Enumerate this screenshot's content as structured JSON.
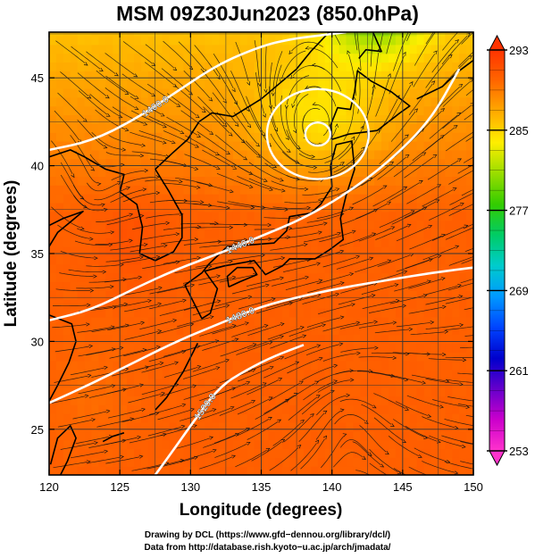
{
  "chart_data": {
    "type": "heatmap",
    "title": "MSM 09Z30Jun2023 (850.0hPa)",
    "xlabel": "Longitude (degrees)",
    "ylabel": "Latitude (degrees)",
    "xlim": [
      120,
      150
    ],
    "ylim": [
      22.4,
      47.6
    ],
    "x_ticks": [
      120,
      125,
      130,
      135,
      140,
      145,
      150
    ],
    "y_ticks": [
      25,
      30,
      35,
      40,
      45
    ],
    "grid": true,
    "colorbar": {
      "min": 253,
      "max": 293,
      "ticks": [
        253,
        261,
        269,
        277,
        285,
        293
      ],
      "placement": "right",
      "colors": [
        "#ff33cc",
        "#cc00cc",
        "#6600cc",
        "#0000cc",
        "#0044ff",
        "#0099ff",
        "#00cccc",
        "#00cc66",
        "#33cc00",
        "#99dd00",
        "#ffee00",
        "#ffaa00",
        "#ff6600",
        "#ff3300"
      ]
    },
    "contours": [
      {
        "label": "1400.0",
        "lon": [
          120,
          123,
          126,
          129,
          132,
          135,
          137,
          139,
          141
        ],
        "lat": [
          40.9,
          41.4,
          42.6,
          44.2,
          45.8,
          46.8,
          47.2,
          47.4,
          47.6
        ]
      },
      {
        "label": "1440.0",
        "lon": [
          120,
          123,
          126,
          129,
          132,
          135,
          138,
          141,
          144,
          147,
          149
        ],
        "lat": [
          31.2,
          31.8,
          33.0,
          34.1,
          35.0,
          36.0,
          37.0,
          38.4,
          40.2,
          42.6,
          45.5
        ]
      },
      {
        "label": "1480.0",
        "lon": [
          120,
          123,
          126,
          129,
          132,
          135,
          138,
          141,
          144,
          147,
          150
        ],
        "lat": [
          26.5,
          27.6,
          28.8,
          30.0,
          31.0,
          32.0,
          32.6,
          33.1,
          33.5,
          33.9,
          34.2
        ]
      },
      {
        "label": "1520.0",
        "lon": [
          127.5,
          128.5,
          130,
          132,
          134,
          136,
          138
        ],
        "lat": [
          22.4,
          23.5,
          25.2,
          27.4,
          28.4,
          29.2,
          29.8
        ]
      }
    ],
    "low_center": {
      "lon": 139,
      "lat": 41.8
    },
    "credit_line1": "Drawing by DCL (https://www.gfd−dennou.org/library/dcl/)",
    "credit_line2": "Data from http://database.rish.kyoto−u.ac.jp/arch/jmadata/"
  }
}
